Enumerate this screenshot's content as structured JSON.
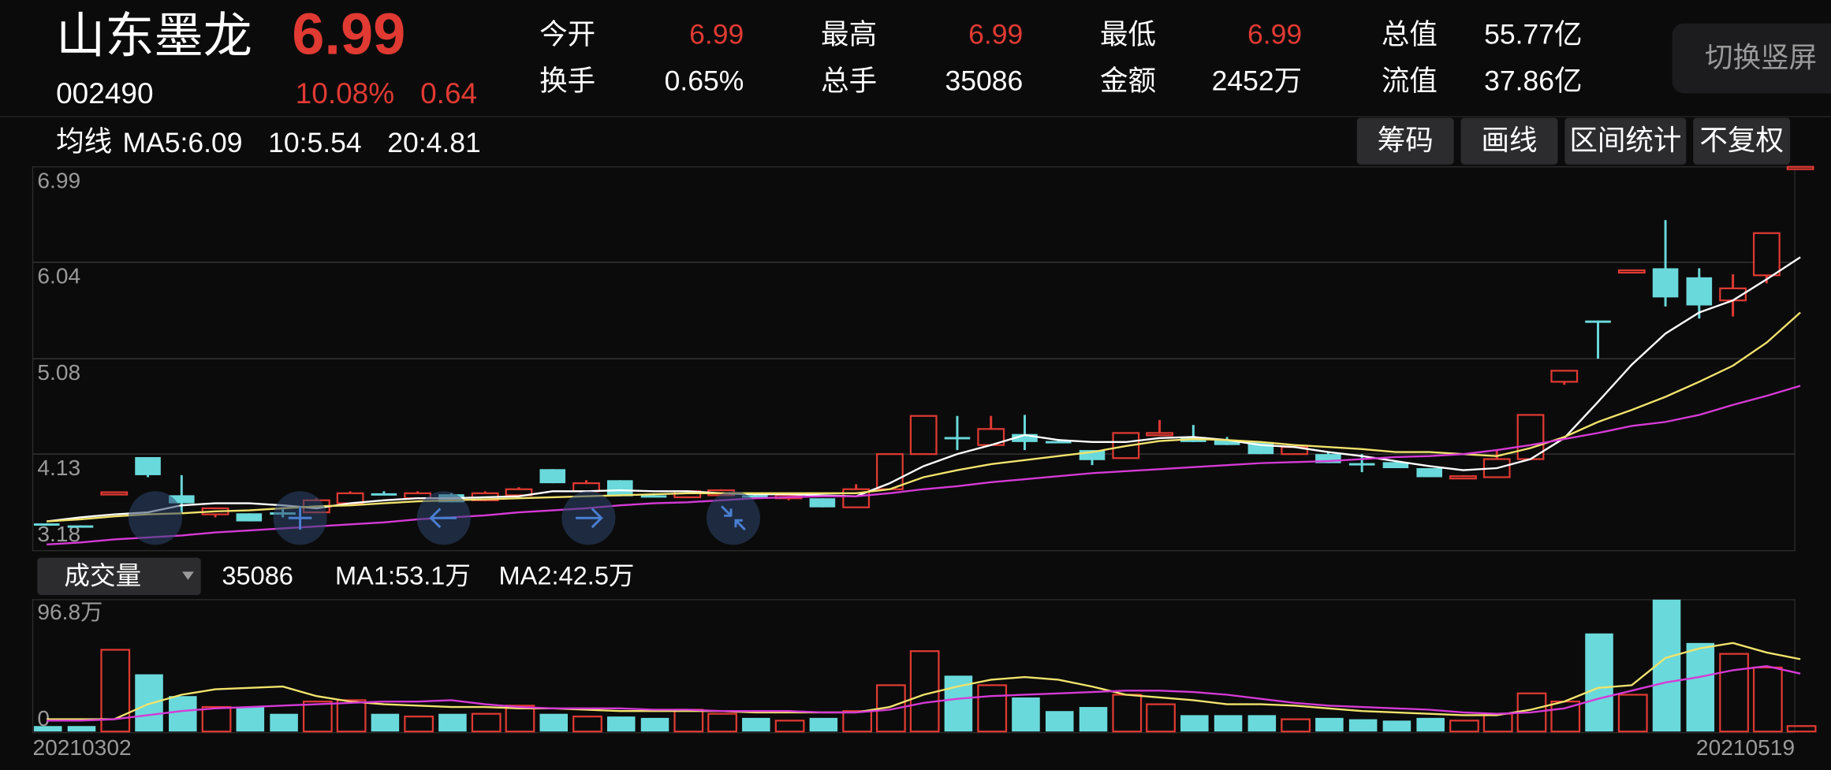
{
  "header": {
    "name": "山东墨龙",
    "price": "6.99",
    "code": "002490",
    "change_pct": "10.08%",
    "change": "0.64",
    "stats": [
      {
        "label": "今开",
        "value": "6.99"
      },
      {
        "label": "最高",
        "value": "6.99"
      },
      {
        "label": "最低",
        "value": "6.99"
      },
      {
        "label": "总值",
        "value": "55.77亿"
      },
      {
        "label": "换手",
        "value": "0.65%"
      },
      {
        "label": "总手",
        "value": "35086"
      },
      {
        "label": "金额",
        "value": "2452万"
      },
      {
        "label": "流值",
        "value": "37.86亿"
      }
    ],
    "button": "切换竖屏"
  },
  "toolbar": {
    "label": "均线",
    "buttons": [
      "筹码",
      "画线",
      "区间统计",
      "不复权"
    ]
  },
  "chart_data": [
    {
      "type": "candlestick",
      "up_color": "#e03a33",
      "down_color": "#6ad9db",
      "ylim": [
        3.18,
        6.99
      ],
      "yticks": [
        6.99,
        6.04,
        5.08,
        4.13,
        3.18
      ],
      "grid": true,
      "open": [
        3.44,
        3.42,
        3.74,
        4.1,
        3.72,
        3.53,
        3.54,
        3.55,
        3.55,
        3.64,
        3.74,
        3.69,
        3.73,
        3.67,
        3.72,
        3.98,
        3.76,
        3.87,
        3.72,
        3.7,
        3.72,
        3.72,
        3.69,
        3.69,
        3.6,
        3.78,
        4.13,
        4.3,
        4.22,
        4.33,
        4.26,
        4.17,
        4.09,
        4.33,
        4.3,
        4.27,
        4.25,
        4.13,
        4.13,
        4.04,
        4.05,
        3.99,
        3.9,
        3.9,
        4.08,
        4.85,
        5.46,
        5.95,
        5.98,
        5.89,
        5.66,
        5.91,
        6.99
      ],
      "high": [
        3.44,
        3.42,
        3.75,
        4.1,
        3.92,
        3.59,
        3.54,
        3.6,
        3.69,
        3.76,
        3.76,
        3.76,
        3.74,
        3.76,
        3.8,
        3.98,
        3.87,
        3.87,
        3.74,
        3.77,
        3.78,
        3.73,
        3.74,
        3.69,
        3.83,
        4.13,
        4.51,
        4.51,
        4.51,
        4.52,
        4.28,
        4.17,
        4.34,
        4.47,
        4.42,
        4.3,
        4.25,
        4.2,
        4.15,
        4.13,
        4.06,
        3.99,
        3.92,
        4.17,
        4.52,
        4.96,
        5.46,
        5.96,
        6.46,
        5.98,
        5.92,
        6.33,
        6.99
      ],
      "low": [
        3.42,
        3.41,
        3.74,
        3.9,
        3.55,
        3.5,
        3.46,
        3.5,
        3.55,
        3.64,
        3.72,
        3.68,
        3.65,
        3.66,
        3.72,
        3.84,
        3.76,
        3.71,
        3.7,
        3.7,
        3.72,
        3.7,
        3.67,
        3.6,
        3.6,
        3.78,
        4.13,
        4.17,
        4.22,
        4.17,
        4.24,
        4.02,
        4.09,
        4.33,
        4.25,
        4.22,
        4.13,
        4.13,
        4.04,
        3.95,
        3.99,
        3.9,
        3.89,
        3.9,
        4.08,
        4.82,
        5.08,
        5.95,
        5.6,
        5.48,
        5.5,
        5.83,
        6.99
      ],
      "close": [
        3.42,
        3.41,
        3.75,
        3.92,
        3.64,
        3.59,
        3.46,
        3.54,
        3.67,
        3.74,
        3.73,
        3.74,
        3.65,
        3.74,
        3.78,
        3.84,
        3.84,
        3.71,
        3.71,
        3.76,
        3.77,
        3.71,
        3.72,
        3.6,
        3.78,
        4.13,
        4.51,
        4.29,
        4.38,
        4.25,
        4.25,
        4.07,
        4.34,
        4.34,
        4.25,
        4.22,
        4.13,
        4.2,
        4.04,
        4.03,
        3.99,
        3.9,
        3.91,
        4.08,
        4.52,
        4.96,
        5.45,
        5.96,
        5.69,
        5.61,
        5.78,
        6.33,
        6.99
      ],
      "series": [
        {
          "name": "MA5:6.09",
          "color": "#ffffff",
          "values": [
            3.46,
            3.5,
            3.53,
            3.55,
            3.62,
            3.64,
            3.64,
            3.62,
            3.59,
            3.64,
            3.67,
            3.69,
            3.69,
            3.7,
            3.71,
            3.76,
            3.76,
            3.77,
            3.76,
            3.76,
            3.74,
            3.73,
            3.73,
            3.72,
            3.71,
            3.84,
            4.01,
            4.13,
            4.22,
            4.32,
            4.27,
            4.25,
            4.25,
            4.29,
            4.3,
            4.27,
            4.22,
            4.2,
            4.15,
            4.11,
            4.06,
            4.01,
            3.97,
            3.99,
            4.08,
            4.29,
            4.65,
            5.02,
            5.33,
            5.54,
            5.66,
            5.87,
            6.09
          ]
        },
        {
          "name": "10:5.54",
          "color": "#f2e36c",
          "values": [
            3.46,
            3.48,
            3.51,
            3.53,
            3.54,
            3.56,
            3.57,
            3.59,
            3.61,
            3.62,
            3.64,
            3.66,
            3.67,
            3.68,
            3.69,
            3.7,
            3.71,
            3.72,
            3.73,
            3.74,
            3.74,
            3.74,
            3.74,
            3.74,
            3.74,
            3.78,
            3.9,
            3.97,
            4.03,
            4.07,
            4.11,
            4.15,
            4.21,
            4.26,
            4.28,
            4.27,
            4.25,
            4.22,
            4.2,
            4.18,
            4.15,
            4.15,
            4.13,
            4.11,
            4.19,
            4.3,
            4.45,
            4.57,
            4.7,
            4.85,
            5.01,
            5.24,
            5.54
          ]
        },
        {
          "name": "20:4.81",
          "color": "#d63ad6",
          "values": [
            3.23,
            3.25,
            3.28,
            3.3,
            3.32,
            3.35,
            3.37,
            3.39,
            3.41,
            3.43,
            3.45,
            3.48,
            3.5,
            3.52,
            3.55,
            3.57,
            3.59,
            3.62,
            3.64,
            3.65,
            3.67,
            3.69,
            3.7,
            3.71,
            3.71,
            3.74,
            3.78,
            3.81,
            3.85,
            3.88,
            3.91,
            3.94,
            3.96,
            3.98,
            4.0,
            4.02,
            4.04,
            4.05,
            4.06,
            4.08,
            4.1,
            4.11,
            4.13,
            4.17,
            4.22,
            4.28,
            4.34,
            4.41,
            4.45,
            4.52,
            4.62,
            4.71,
            4.81
          ]
        }
      ]
    },
    {
      "type": "bar",
      "selector": "成交量",
      "current": "35086",
      "ylim": [
        0,
        96.8
      ],
      "yticks": [
        {
          "value": 96.8,
          "label": "96.8万"
        },
        0
      ],
      "categories": [
        "20210302",
        null,
        null,
        null,
        null,
        null,
        null,
        null,
        null,
        null,
        null,
        null,
        null,
        null,
        null,
        null,
        null,
        null,
        null,
        null,
        null,
        null,
        null,
        null,
        null,
        null,
        null,
        null,
        null,
        null,
        null,
        null,
        null,
        null,
        null,
        null,
        null,
        null,
        null,
        null,
        null,
        null,
        null,
        null,
        null,
        null,
        null,
        null,
        null,
        null,
        null,
        null,
        "20210519"
      ],
      "values": [
        4,
        4,
        60,
        42,
        26,
        18,
        18,
        13,
        22,
        23,
        13,
        11,
        13,
        13,
        19,
        13,
        11,
        11,
        10,
        16,
        13,
        10,
        8,
        10,
        15,
        34,
        59,
        41,
        34,
        25,
        15,
        18,
        27,
        20,
        12,
        12,
        12,
        9,
        10,
        9,
        8,
        10,
        8,
        13,
        28,
        22,
        72,
        27,
        96.8,
        65,
        57,
        47,
        4
      ],
      "series": [
        {
          "name": "MA1:53.1万",
          "color": "#f2e36c",
          "values": [
            9,
            9,
            9,
            20,
            27,
            31,
            32,
            33,
            26,
            22,
            20,
            19,
            18,
            18,
            17,
            17,
            16,
            15,
            15,
            15,
            15,
            14,
            14,
            14,
            14,
            18,
            27,
            33,
            38,
            40,
            38,
            33,
            27,
            25,
            23,
            20,
            20,
            19,
            17,
            15,
            14,
            13,
            12,
            12,
            16,
            22,
            32,
            34,
            54,
            61,
            65,
            58,
            53.1
          ]
        },
        {
          "name": "MA2:42.5万",
          "color": "#d63ad6",
          "values": [
            8,
            8,
            9,
            12,
            15,
            17,
            18,
            19,
            20,
            21,
            22,
            22,
            23,
            20,
            18,
            17,
            17,
            17,
            16,
            16,
            15,
            15,
            15,
            14,
            14,
            16,
            21,
            24,
            26,
            27,
            28,
            29,
            30,
            30,
            29,
            27,
            24,
            21,
            19,
            18,
            17,
            16,
            14,
            13,
            14,
            17,
            24,
            30,
            36,
            40,
            45,
            48,
            42.5
          ]
        }
      ]
    }
  ]
}
